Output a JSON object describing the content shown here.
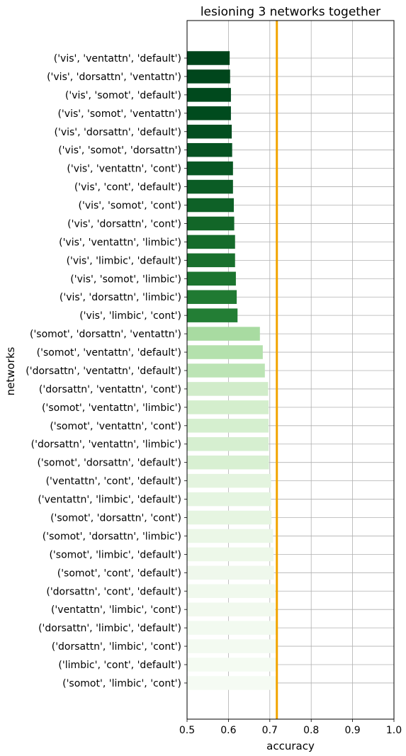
{
  "chart_data": {
    "type": "bar",
    "orientation": "horizontal",
    "title": "lesioning 3 networks together",
    "xlabel": "accuracy",
    "ylabel": "networks",
    "xlim": [
      0.5,
      1.0
    ],
    "xticks": [
      "0.5",
      "0.6",
      "0.7",
      "0.8",
      "0.9",
      "1.0"
    ],
    "grid": true,
    "reference_line": {
      "value": 0.717,
      "color": "#f2a400"
    },
    "categories": [
      "('vis', 'ventattn', 'default')",
      "('vis', 'dorsattn', 'ventattn')",
      "('vis', 'somot', 'default')",
      "('vis', 'somot', 'ventattn')",
      "('vis', 'dorsattn', 'default')",
      "('vis', 'somot', 'dorsattn')",
      "('vis', 'ventattn', 'cont')",
      "('vis', 'cont', 'default')",
      "('vis', 'somot', 'cont')",
      "('vis', 'dorsattn', 'cont')",
      "('vis', 'ventattn', 'limbic')",
      "('vis', 'limbic', 'default')",
      "('vis', 'somot', 'limbic')",
      "('vis', 'dorsattn', 'limbic')",
      "('vis', 'limbic', 'cont')",
      "('somot', 'dorsattn', 'ventattn')",
      "('somot', 'ventattn', 'default')",
      "('dorsattn', 'ventattn', 'default')",
      "('dorsattn', 'ventattn', 'cont')",
      "('somot', 'ventattn', 'limbic')",
      "('somot', 'ventattn', 'cont')",
      "('dorsattn', 'ventattn', 'limbic')",
      "('somot', 'dorsattn', 'default')",
      "('ventattn', 'cont', 'default')",
      "('ventattn', 'limbic', 'default')",
      "('somot', 'dorsattn', 'cont')",
      "('somot', 'dorsattn', 'limbic')",
      "('somot', 'limbic', 'default')",
      "('somot', 'cont', 'default')",
      "('dorsattn', 'cont', 'default')",
      "('ventattn', 'limbic', 'cont')",
      "('dorsattn', 'limbic', 'default')",
      "('dorsattn', 'limbic', 'cont')",
      "('limbic', 'cont', 'default')",
      "('somot', 'limbic', 'cont')"
    ],
    "values": [
      0.603,
      0.604,
      0.606,
      0.606,
      0.608,
      0.609,
      0.611,
      0.611,
      0.613,
      0.614,
      0.616,
      0.616,
      0.618,
      0.62,
      0.622,
      0.676,
      0.683,
      0.688,
      0.696,
      0.697,
      0.697,
      0.697,
      0.698,
      0.703,
      0.703,
      0.704,
      0.708,
      0.709,
      0.71,
      0.713,
      0.713,
      0.715,
      0.715,
      0.715,
      0.715
    ],
    "colors": [
      "#00441b",
      "#00461c",
      "#00491d",
      "#004b1e",
      "#034e20",
      "#065322",
      "#085723",
      "#0b5c25",
      "#0e6127",
      "#126628",
      "#166b2b",
      "#19702d",
      "#1c742f",
      "#207a32",
      "#237e35",
      "#a8dba1",
      "#b4e1ad",
      "#bce4b5",
      "#d1ecca",
      "#d4eecd",
      "#d5efcf",
      "#d6efd0",
      "#d8f0d2",
      "#e4f4df",
      "#e5f5e1",
      "#e6f5e1",
      "#ebf7e7",
      "#edf8e9",
      "#eff8ec",
      "#f0f9ed",
      "#f1f9ee",
      "#f2faf0",
      "#f3faf1",
      "#f4fbf2",
      "#f5fbf3"
    ]
  }
}
